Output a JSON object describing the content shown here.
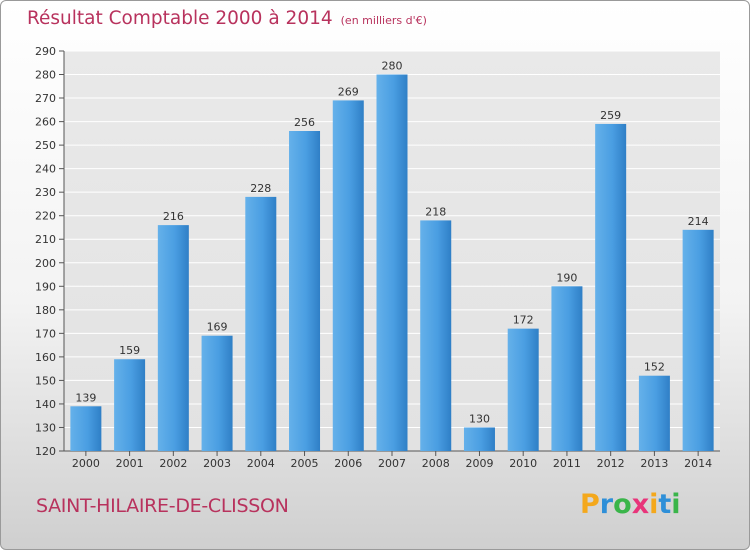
{
  "chart_data": {
    "type": "bar",
    "title": "Résultat Comptable 2000 à 2014",
    "subtitle": "(en milliers d'€)",
    "categories": [
      "2000",
      "2001",
      "2002",
      "2003",
      "2004",
      "2005",
      "2006",
      "2007",
      "2008",
      "2009",
      "2010",
      "2011",
      "2012",
      "2013",
      "2014"
    ],
    "values": [
      139,
      159,
      216,
      169,
      228,
      256,
      269,
      280,
      218,
      130,
      172,
      190,
      259,
      152,
      214
    ],
    "ylim": [
      120,
      290
    ],
    "yticks": [
      120,
      130,
      140,
      150,
      160,
      170,
      180,
      190,
      200,
      210,
      220,
      230,
      240,
      250,
      260,
      270,
      280,
      290
    ],
    "grid": true,
    "bar_color": "#3d8fd8"
  },
  "commune": "SAINT-HILAIRE-DE-CLISSON",
  "logo": {
    "letters": [
      "P",
      "r",
      "o",
      "x",
      "i",
      "t",
      "i"
    ],
    "colors": [
      "#f4a81c",
      "#2e8fd8",
      "#3ab54a",
      "#e8347a",
      "#f4a81c",
      "#2e8fd8",
      "#3ab54a"
    ]
  }
}
